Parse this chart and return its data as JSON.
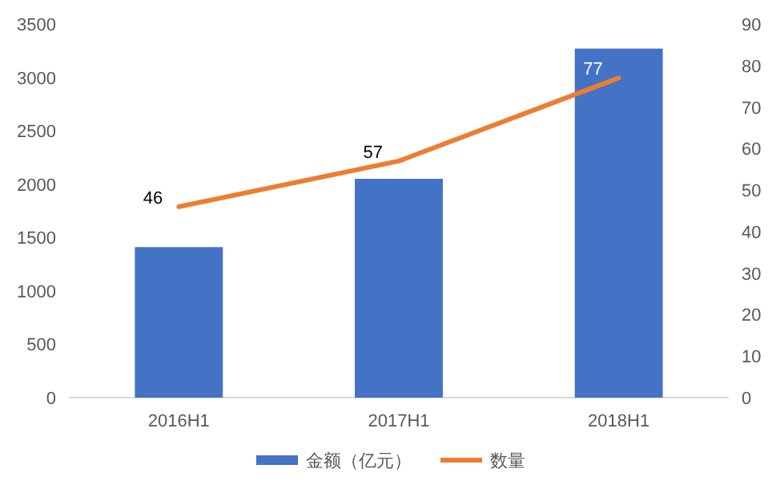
{
  "chart_data": {
    "type": "bar",
    "categories": [
      "2016H1",
      "2017H1",
      "2018H1"
    ],
    "series": [
      {
        "name": "金额（亿元）",
        "color": "#4472c4",
        "values": [
          1410,
          2050,
          3270
        ]
      },
      {
        "name": "数量",
        "type": "line",
        "axis": "y2",
        "color": "#ed7d31",
        "values": [
          46,
          57,
          77
        ],
        "value_labels": [
          "46",
          "57",
          "77"
        ]
      }
    ],
    "ylim": [
      0,
      3500
    ],
    "yticks": [
      0,
      500,
      1000,
      1500,
      2000,
      2500,
      3000,
      3500
    ],
    "y2lim": [
      0,
      90
    ],
    "y2ticks": [
      0,
      10,
      20,
      30,
      40,
      50,
      60,
      70,
      80,
      90
    ],
    "grid": false,
    "legend": "bottom"
  }
}
